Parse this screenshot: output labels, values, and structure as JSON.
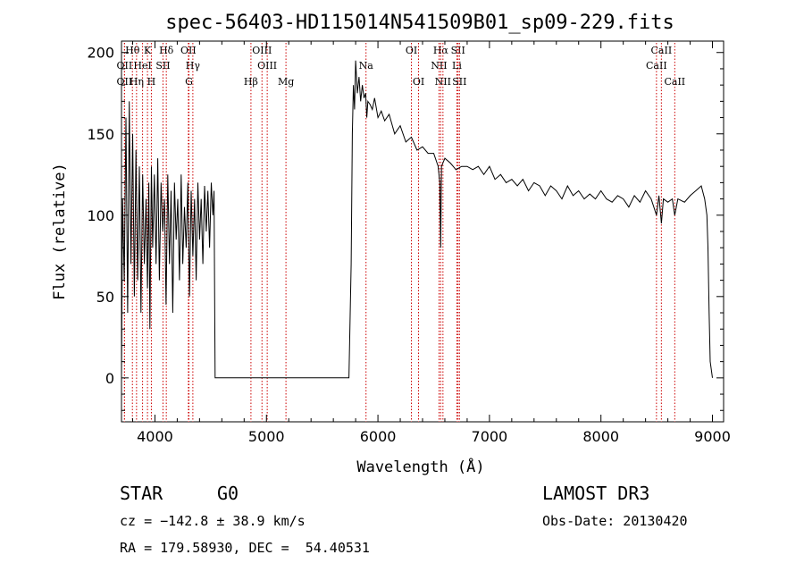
{
  "chart_data": {
    "type": "line",
    "title": "spec-56403-HD115014N541509B01_sp09-229.fits",
    "xlabel": "Wavelength (Å)",
    "ylabel": "Flux (relative)",
    "xlim": [
      3700,
      9100
    ],
    "ylim": [
      -27,
      207
    ],
    "xticks": [
      4000,
      5000,
      6000,
      7000,
      8000,
      9000
    ],
    "yticks": [
      0,
      50,
      100,
      150,
      200
    ],
    "series": [
      {
        "name": "spectrum",
        "x": [
          3700,
          3710,
          3725,
          3740,
          3755,
          3770,
          3785,
          3800,
          3815,
          3830,
          3845,
          3860,
          3875,
          3890,
          3905,
          3920,
          3933,
          3945,
          3955,
          3968,
          3980,
          3995,
          4010,
          4025,
          4040,
          4055,
          4070,
          4085,
          4100,
          4115,
          4130,
          4145,
          4160,
          4175,
          4190,
          4205,
          4220,
          4235,
          4250,
          4265,
          4280,
          4295,
          4310,
          4325,
          4340,
          4355,
          4370,
          4385,
          4400,
          4415,
          4430,
          4445,
          4460,
          4475,
          4490,
          4505,
          4520,
          4530,
          4540,
          4550,
          5700,
          5740,
          5760,
          5770,
          5780,
          5790,
          5800,
          5815,
          5830,
          5845,
          5860,
          5875,
          5890,
          5900,
          5910,
          5930,
          5950,
          5970,
          6000,
          6030,
          6060,
          6100,
          6150,
          6200,
          6250,
          6300,
          6350,
          6400,
          6450,
          6500,
          6540,
          6555,
          6563,
          6570,
          6600,
          6650,
          6700,
          6750,
          6800,
          6850,
          6900,
          6950,
          7000,
          7050,
          7100,
          7150,
          7200,
          7250,
          7300,
          7350,
          7400,
          7450,
          7500,
          7550,
          7600,
          7650,
          7700,
          7750,
          7800,
          7850,
          7900,
          7950,
          8000,
          8050,
          8100,
          8150,
          8200,
          8250,
          8300,
          8350,
          8400,
          8450,
          8498,
          8520,
          8542,
          8560,
          8600,
          8640,
          8662,
          8690,
          8750,
          8800,
          8850,
          8900,
          8930,
          8950,
          8960,
          8970,
          8980,
          9000
        ],
        "y": [
          0,
          110,
          60,
          160,
          40,
          170,
          70,
          150,
          50,
          140,
          60,
          130,
          40,
          125,
          70,
          110,
          55,
          120,
          30,
          130,
          80,
          125,
          70,
          135,
          60,
          120,
          90,
          110,
          45,
          125,
          70,
          115,
          40,
          120,
          85,
          110,
          60,
          125,
          70,
          105,
          80,
          120,
          50,
          115,
          75,
          110,
          60,
          120,
          85,
          110,
          70,
          118,
          90,
          115,
          80,
          120,
          100,
          115,
          0,
          0,
          0,
          0,
          70,
          150,
          180,
          165,
          195,
          175,
          185,
          170,
          180,
          172,
          175,
          160,
          170,
          168,
          165,
          172,
          160,
          164,
          158,
          162,
          150,
          155,
          145,
          148,
          140,
          142,
          138,
          138,
          130,
          120,
          80,
          130,
          135,
          132,
          128,
          130,
          130,
          128,
          130,
          125,
          130,
          122,
          125,
          120,
          122,
          118,
          122,
          115,
          120,
          118,
          112,
          118,
          115,
          110,
          118,
          112,
          115,
          110,
          113,
          110,
          115,
          110,
          108,
          112,
          110,
          105,
          112,
          108,
          115,
          110,
          100,
          112,
          95,
          110,
          108,
          110,
          100,
          110,
          108,
          112,
          115,
          118,
          110,
          100,
          80,
          40,
          10,
          0
        ]
      }
    ],
    "lines": [
      {
        "label": "Hθ",
        "x": 3798,
        "row": 0
      },
      {
        "label": "K",
        "x": 3933,
        "row": 0
      },
      {
        "label": "Hδ",
        "x": 4102,
        "row": 0
      },
      {
        "label": "OII",
        "x": 4300,
        "row": 0
      },
      {
        "label": "OIII",
        "x": 4960,
        "row": 0
      },
      {
        "label": "OI",
        "x": 6300,
        "row": 0
      },
      {
        "label": "Hα",
        "x": 6563,
        "row": 0
      },
      {
        "label": "SII",
        "x": 6718,
        "row": 0
      },
      {
        "label": "CaII",
        "x": 8542,
        "row": 0
      },
      {
        "label": "OII",
        "x": 3727,
        "row": 1
      },
      {
        "label": "HeI",
        "x": 3889,
        "row": 1
      },
      {
        "label": "SII",
        "x": 4072,
        "row": 1
      },
      {
        "label": "Hγ",
        "x": 4340,
        "row": 1
      },
      {
        "label": "OIII",
        "x": 5007,
        "row": 1
      },
      {
        "label": "Na",
        "x": 5893,
        "row": 1
      },
      {
        "label": "NII",
        "x": 6548,
        "row": 1
      },
      {
        "label": "Li",
        "x": 6708,
        "row": 1
      },
      {
        "label": "CaII",
        "x": 8498,
        "row": 1
      },
      {
        "label": "OII",
        "x": 3727,
        "row": 2
      },
      {
        "label": "Hη",
        "x": 3835,
        "row": 2
      },
      {
        "label": "H",
        "x": 3968,
        "row": 2
      },
      {
        "label": "G",
        "x": 4305,
        "row": 2
      },
      {
        "label": "Hβ",
        "x": 4861,
        "row": 2
      },
      {
        "label": "Mg",
        "x": 5175,
        "row": 2
      },
      {
        "label": "OI",
        "x": 6364,
        "row": 2
      },
      {
        "label": "NII",
        "x": 6583,
        "row": 2
      },
      {
        "label": "SII",
        "x": 6731,
        "row": 2
      },
      {
        "label": "CaII",
        "x": 8662,
        "row": 2
      }
    ]
  },
  "info": {
    "class": "STAR",
    "subclass": "G0",
    "survey": "LAMOST DR3",
    "cz": "cz = −142.8 ± 38.9 km/s",
    "obs_date": "Obs-Date: 20130420",
    "radec": "RA = 179.58930, DEC =  54.40531"
  },
  "colors": {
    "line_marker": "#cc0000",
    "spectrum": "#000000",
    "axes": "#000000"
  }
}
